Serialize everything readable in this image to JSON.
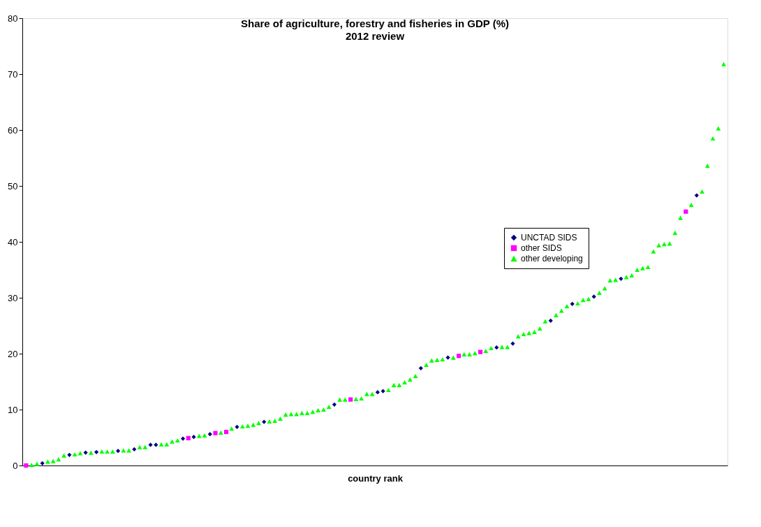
{
  "chart_data": {
    "type": "scatter",
    "title": "Share of agriculture, forestry and fisheries in GDP (%)",
    "subtitle": "2012 review",
    "xlabel": "country rank",
    "categories": [
      null,
      null,
      null,
      null,
      null,
      null,
      null,
      null,
      null,
      null,
      null,
      null,
      null,
      null,
      null,
      null,
      null,
      null,
      null,
      null,
      null,
      null,
      null,
      null,
      null,
      null,
      null,
      null,
      null,
      null,
      null,
      null,
      null,
      null,
      null,
      null,
      null,
      null,
      null,
      null,
      null,
      null,
      null,
      null,
      null,
      null,
      null,
      null,
      null,
      null,
      null,
      null,
      null,
      null,
      null,
      null,
      null,
      null,
      null,
      null,
      null,
      null,
      null,
      null,
      null,
      null,
      null,
      null,
      null,
      null,
      null,
      null,
      null,
      null,
      null,
      null,
      null,
      null,
      null,
      null,
      null,
      null,
      null,
      null,
      null,
      null,
      null,
      null,
      null,
      null,
      null,
      null,
      null,
      null,
      null,
      null,
      null,
      null,
      null,
      null,
      null,
      null,
      null,
      null,
      null,
      null,
      null,
      null,
      null,
      null,
      null,
      null,
      null,
      null,
      null,
      null,
      null,
      null,
      null,
      null,
      null,
      null,
      null,
      null,
      null,
      null,
      null,
      null,
      null,
      null
    ],
    "series": [
      {
        "name": "UNCTAD SIDS",
        "color": "#000080",
        "marker": "diamond",
        "values": [
          null,
          null,
          null,
          0.4,
          null,
          null,
          null,
          null,
          1.9,
          null,
          null,
          2.3,
          null,
          2.4,
          null,
          null,
          null,
          2.6,
          null,
          null,
          2.9,
          null,
          null,
          3.7,
          3.7,
          null,
          null,
          null,
          null,
          4.8,
          null,
          5.1,
          null,
          null,
          5.6,
          null,
          null,
          null,
          null,
          6.9,
          null,
          null,
          null,
          null,
          7.8,
          null,
          null,
          null,
          null,
          null,
          null,
          null,
          null,
          null,
          null,
          null,
          null,
          10.9,
          null,
          null,
          null,
          null,
          null,
          null,
          null,
          13.1,
          13.3,
          null,
          null,
          null,
          null,
          null,
          null,
          17.4,
          null,
          null,
          null,
          null,
          19.3,
          null,
          null,
          null,
          null,
          null,
          null,
          null,
          null,
          21.1,
          null,
          null,
          21.8,
          null,
          null,
          null,
          null,
          null,
          null,
          25.9,
          null,
          null,
          null,
          28.9,
          null,
          null,
          null,
          30.2,
          null,
          null,
          null,
          null,
          33.4,
          null,
          null,
          null,
          null,
          null,
          null,
          null,
          null,
          null,
          null,
          null,
          null,
          null,
          48.3,
          null,
          null,
          null,
          null,
          null
        ]
      },
      {
        "name": "other SIDS",
        "color": "#ff00ff",
        "marker": "square",
        "values": [
          0,
          null,
          null,
          null,
          null,
          null,
          null,
          null,
          null,
          null,
          null,
          null,
          null,
          null,
          null,
          null,
          null,
          null,
          null,
          null,
          null,
          null,
          null,
          null,
          null,
          null,
          null,
          null,
          null,
          null,
          4.9,
          null,
          null,
          null,
          null,
          5.8,
          null,
          6.0,
          null,
          null,
          null,
          null,
          null,
          null,
          null,
          null,
          null,
          null,
          null,
          null,
          null,
          null,
          null,
          null,
          null,
          null,
          null,
          null,
          null,
          null,
          11.8,
          null,
          null,
          null,
          null,
          null,
          null,
          null,
          null,
          null,
          null,
          null,
          null,
          null,
          null,
          null,
          null,
          null,
          null,
          null,
          19.6,
          null,
          null,
          null,
          20.3,
          null,
          null,
          null,
          null,
          null,
          null,
          null,
          null,
          null,
          null,
          null,
          null,
          null,
          null,
          null,
          null,
          null,
          null,
          null,
          null,
          null,
          null,
          null,
          null,
          null,
          null,
          null,
          null,
          null,
          null,
          null,
          null,
          null,
          null,
          null,
          null,
          null,
          45.4,
          null,
          null,
          null,
          null,
          null,
          null,
          null
        ]
      },
      {
        "name": "other developing",
        "color": "#00ff00",
        "marker": "triangle",
        "values": [
          null,
          0.1,
          0.3,
          null,
          0.7,
          0.8,
          1.1,
          1.8,
          null,
          2.0,
          2.2,
          null,
          2.3,
          null,
          2.5,
          2.5,
          2.5,
          null,
          2.7,
          2.7,
          null,
          3.3,
          3.3,
          null,
          null,
          3.8,
          3.8,
          4.3,
          4.5,
          null,
          null,
          null,
          5.3,
          5.4,
          null,
          null,
          5.9,
          null,
          6.6,
          null,
          7.0,
          7.1,
          7.3,
          7.6,
          null,
          7.9,
          8.0,
          8.4,
          9.1,
          9.2,
          9.2,
          9.4,
          9.4,
          9.6,
          9.9,
          10.0,
          10.5,
          null,
          11.8,
          11.8,
          null,
          11.9,
          12.0,
          12.8,
          12.8,
          null,
          null,
          13.5,
          14.4,
          14.4,
          14.9,
          15.4,
          16.0,
          null,
          18.0,
          18.8,
          18.9,
          19.0,
          null,
          19.3,
          null,
          19.9,
          19.9,
          20.1,
          null,
          20.5,
          21.0,
          null,
          21.2,
          21.2,
          null,
          23.1,
          23.5,
          23.7,
          23.9,
          24.5,
          25.8,
          null,
          26.9,
          27.7,
          28.5,
          null,
          29.0,
          29.6,
          29.8,
          null,
          30.9,
          31.7,
          33.1,
          33.2,
          null,
          33.7,
          34.0,
          35.0,
          35.3,
          35.5,
          38.3,
          39.4,
          39.6,
          39.7,
          41.6,
          44.3,
          null,
          46.6,
          null,
          49.0,
          53.6,
          58.5,
          60.3,
          71.8
        ]
      }
    ],
    "ylim": [
      0,
      80
    ],
    "yticks": [
      0,
      10,
      20,
      30,
      40,
      50,
      60,
      70,
      80
    ],
    "grid": false,
    "legend": "right"
  }
}
